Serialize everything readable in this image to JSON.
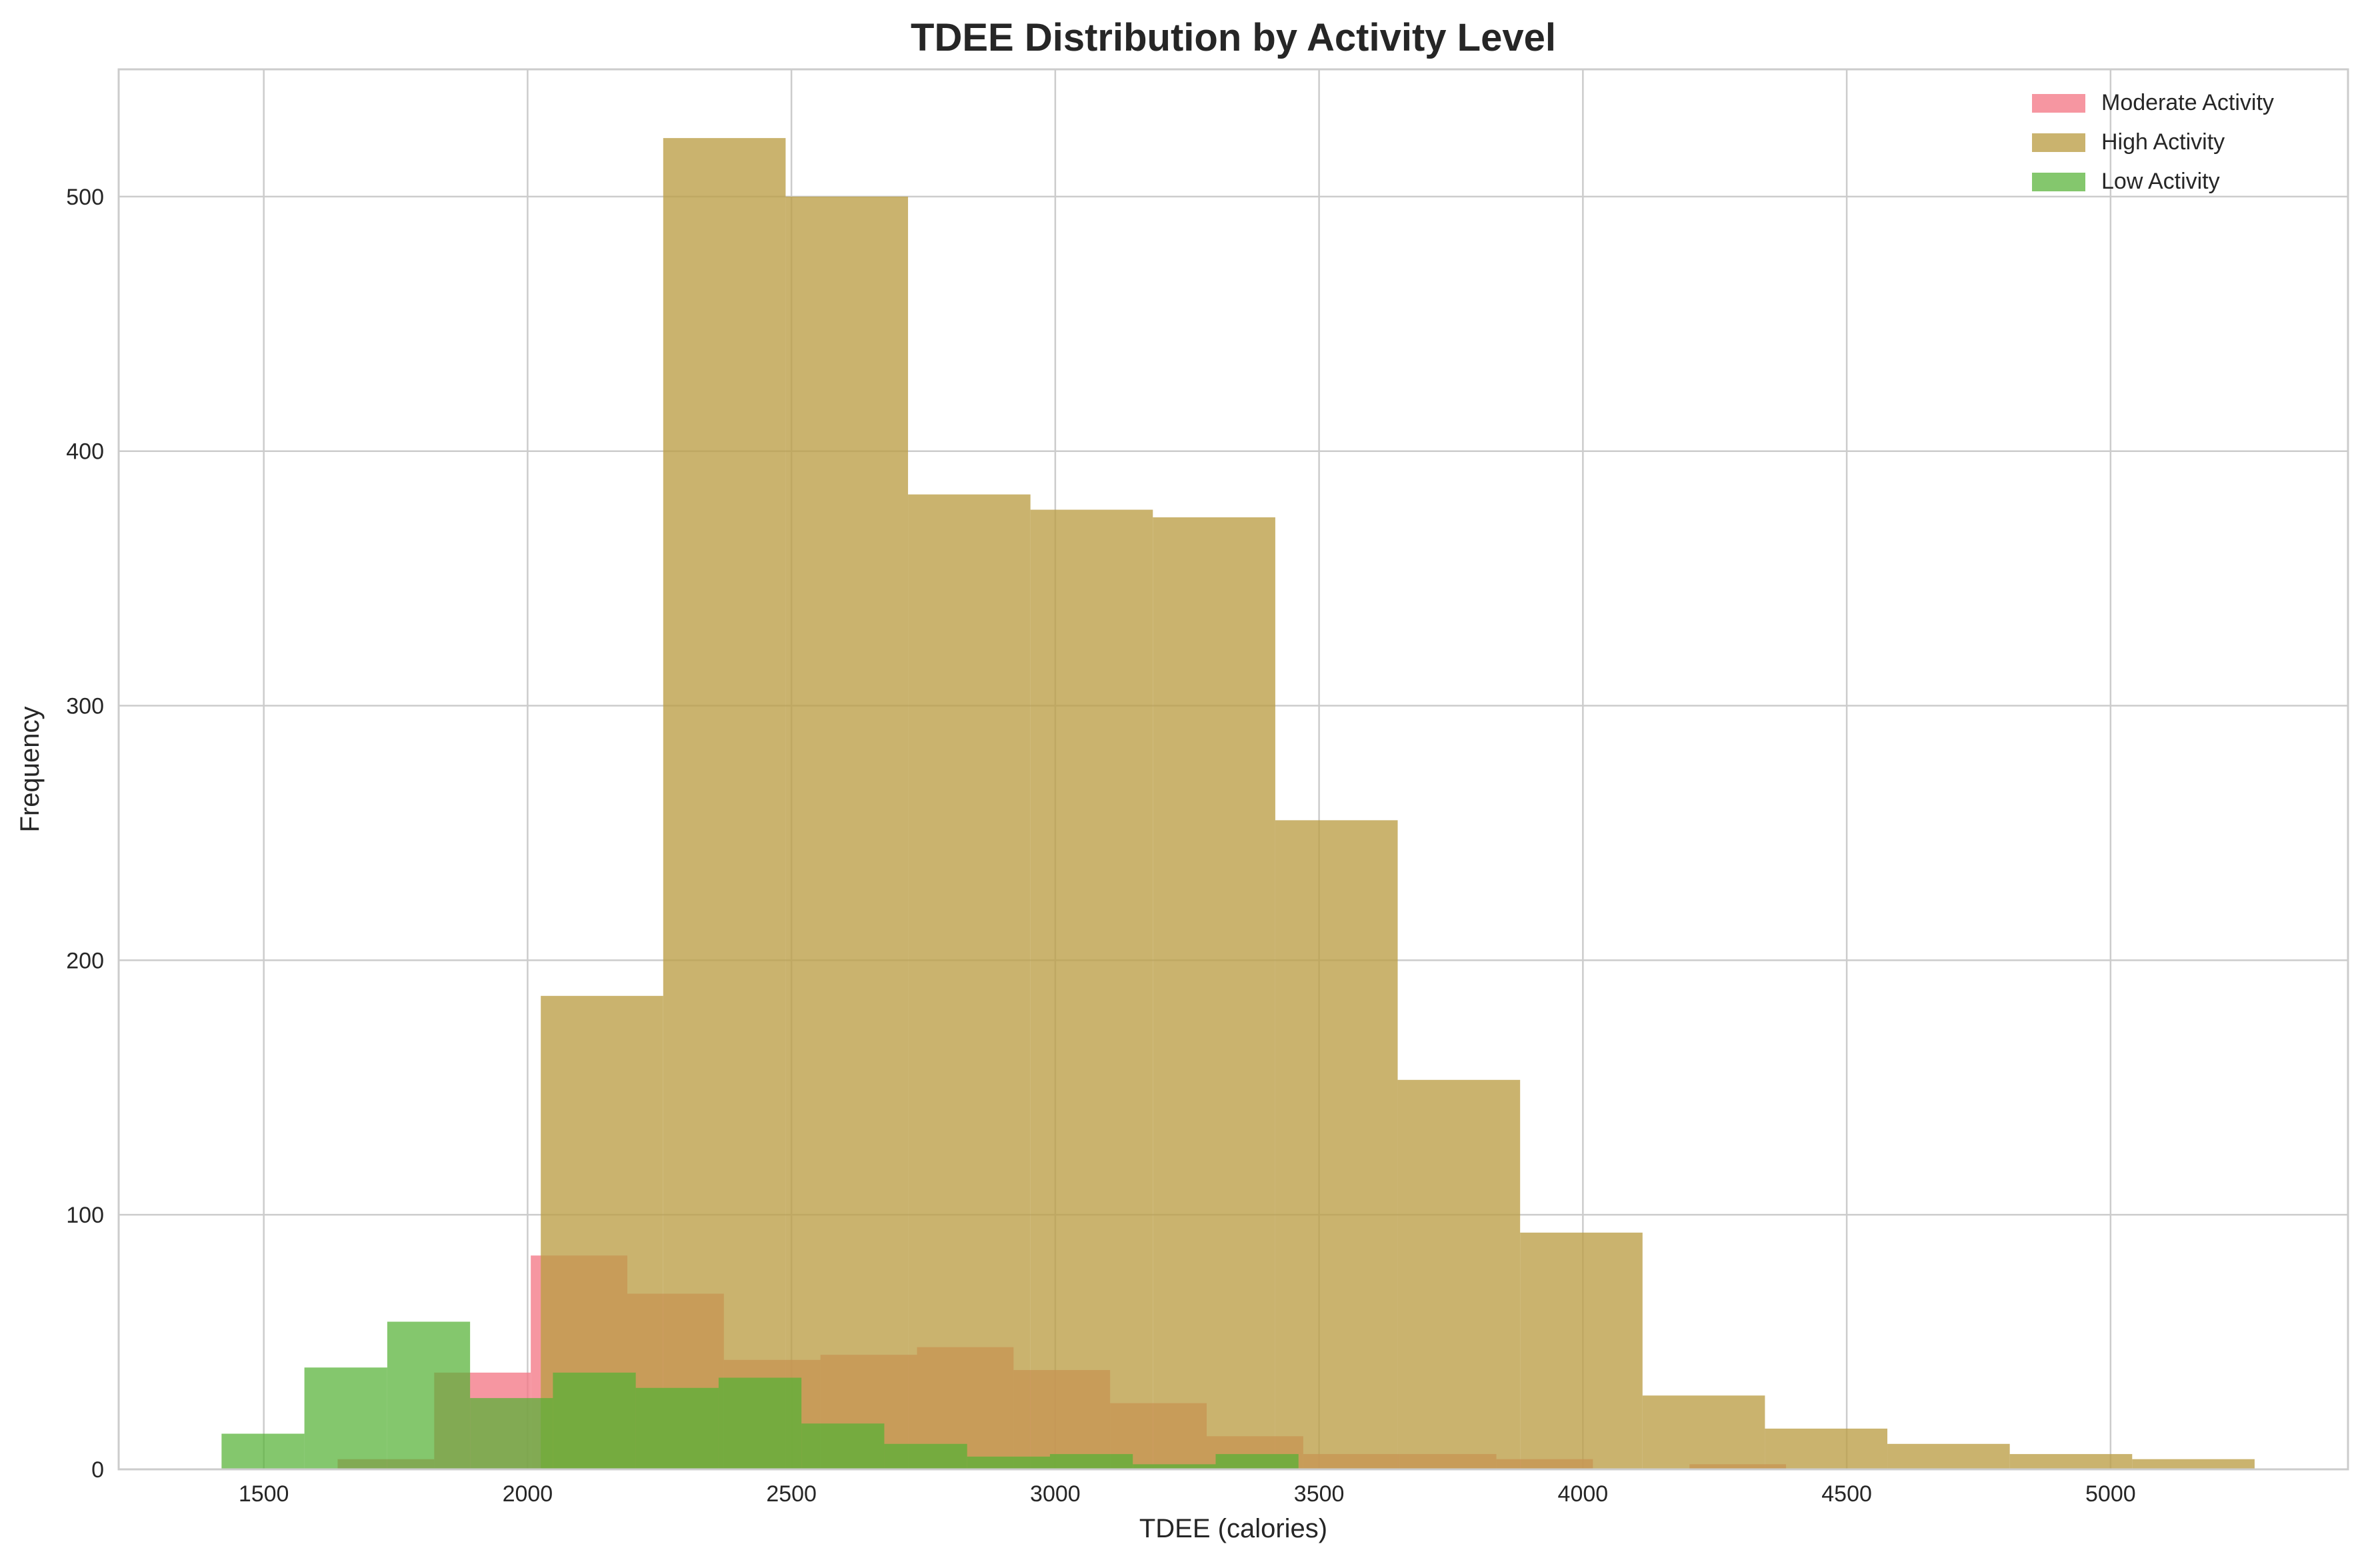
{
  "chart_data": {
    "type": "bar",
    "subtype": "overlapping-histogram",
    "title": "TDEE Distribution by Activity Level",
    "xlabel": "TDEE (calories)",
    "ylabel": "Frequency",
    "xlim": [
      1225,
      5450
    ],
    "ylim": [
      0,
      550
    ],
    "xticks": [
      1500,
      2000,
      2500,
      3000,
      3500,
      4000,
      4500,
      5000
    ],
    "yticks": [
      0,
      100,
      200,
      300,
      400,
      500
    ],
    "grid": true,
    "legend_position": "top-right",
    "series": [
      {
        "name": "Moderate Activity",
        "color": "#f37987",
        "opacity": 0.78,
        "bins": [
          {
            "x0": 1640,
            "x1": 1823,
            "count": 4
          },
          {
            "x0": 1823,
            "x1": 2006,
            "count": 38
          },
          {
            "x0": 2006,
            "x1": 2189,
            "count": 84
          },
          {
            "x0": 2189,
            "x1": 2372,
            "count": 69
          },
          {
            "x0": 2372,
            "x1": 2555,
            "count": 43
          },
          {
            "x0": 2555,
            "x1": 2738,
            "count": 45
          },
          {
            "x0": 2738,
            "x1": 2921,
            "count": 48
          },
          {
            "x0": 2921,
            "x1": 3104,
            "count": 39
          },
          {
            "x0": 3104,
            "x1": 3287,
            "count": 26
          },
          {
            "x0": 3287,
            "x1": 3470,
            "count": 13
          },
          {
            "x0": 3470,
            "x1": 3653,
            "count": 6
          },
          {
            "x0": 3653,
            "x1": 3836,
            "count": 6
          },
          {
            "x0": 3836,
            "x1": 4019,
            "count": 4
          },
          {
            "x0": 4019,
            "x1": 4202,
            "count": 0
          },
          {
            "x0": 4202,
            "x1": 4385,
            "count": 2
          }
        ]
      },
      {
        "name": "High Activity",
        "color": "#bb9d45",
        "opacity": 0.78,
        "bins": [
          {
            "x0": 2025,
            "x1": 2257,
            "count": 186
          },
          {
            "x0": 2257,
            "x1": 2489,
            "count": 523
          },
          {
            "x0": 2489,
            "x1": 2721,
            "count": 500
          },
          {
            "x0": 2721,
            "x1": 2953,
            "count": 383
          },
          {
            "x0": 2953,
            "x1": 3185,
            "count": 377
          },
          {
            "x0": 3185,
            "x1": 3417,
            "count": 374
          },
          {
            "x0": 3417,
            "x1": 3649,
            "count": 255
          },
          {
            "x0": 3649,
            "x1": 3881,
            "count": 153
          },
          {
            "x0": 3881,
            "x1": 4113,
            "count": 93
          },
          {
            "x0": 4113,
            "x1": 4345,
            "count": 29
          },
          {
            "x0": 4345,
            "x1": 4577,
            "count": 16
          },
          {
            "x0": 4577,
            "x1": 4809,
            "count": 10
          },
          {
            "x0": 4809,
            "x1": 5041,
            "count": 6
          },
          {
            "x0": 5041,
            "x1": 5273,
            "count": 4
          }
        ]
      },
      {
        "name": "Low Activity",
        "color": "#55b134",
        "opacity": 0.72,
        "bins": [
          {
            "x0": 1420,
            "x1": 1577,
            "count": 14
          },
          {
            "x0": 1577,
            "x1": 1734,
            "count": 40
          },
          {
            "x0": 1734,
            "x1": 1891,
            "count": 58
          },
          {
            "x0": 1891,
            "x1": 2048,
            "count": 28
          },
          {
            "x0": 2048,
            "x1": 2205,
            "count": 38
          },
          {
            "x0": 2205,
            "x1": 2362,
            "count": 32
          },
          {
            "x0": 2362,
            "x1": 2519,
            "count": 36
          },
          {
            "x0": 2519,
            "x1": 2676,
            "count": 18
          },
          {
            "x0": 2676,
            "x1": 2833,
            "count": 10
          },
          {
            "x0": 2833,
            "x1": 2990,
            "count": 5
          },
          {
            "x0": 2990,
            "x1": 3147,
            "count": 6
          },
          {
            "x0": 3147,
            "x1": 3304,
            "count": 2
          },
          {
            "x0": 3304,
            "x1": 3461,
            "count": 6
          }
        ]
      }
    ]
  }
}
